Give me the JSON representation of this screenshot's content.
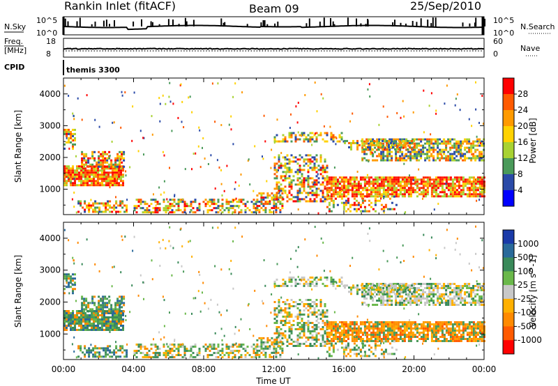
{
  "header": {
    "station": "Rankin Inlet (fitACF)",
    "beam": "Beam 09",
    "date": "25/Sep/2010"
  },
  "noise_panel": {
    "left_label": "N.Sky",
    "left_ticks": [
      "10^5",
      "10^0"
    ],
    "right_label": "N.Search",
    "right_ticks": [
      "10^5",
      "10^0"
    ]
  },
  "freq_panel": {
    "left_label_top": "Freq.",
    "left_label_unit": "[MHz]",
    "left_ticks": [
      "18",
      "8"
    ],
    "right_label": "Nave",
    "right_ticks": [
      "60",
      "0"
    ]
  },
  "cpid_panel": {
    "label": "CPID",
    "program": "themis 3300"
  },
  "chart_data": [
    {
      "type": "heatmap",
      "name": "power",
      "ylabel": "Slant Range [km]",
      "xlabel": "",
      "x_ticks": [
        "00:00",
        "04:00",
        "08:00",
        "12:00",
        "16:00",
        "20:00",
        "00:00"
      ],
      "y_ticks": [
        1000,
        2000,
        3000,
        4000
      ],
      "ylim": [
        200,
        4500
      ],
      "colorbar": {
        "label": "Power [dB]",
        "ticks": [
          "28",
          "24",
          "20",
          "16",
          "12",
          "8",
          "4"
        ],
        "colors": [
          "#ff0000",
          "#ff5a00",
          "#ff9a00",
          "#ffd200",
          "#a8d232",
          "#4a9a5a",
          "#2a4aa8",
          "#0000ff"
        ]
      }
    },
    {
      "type": "heatmap",
      "name": "velocity",
      "ylabel": "Slant Range [km]",
      "xlabel": "Time UT",
      "x_ticks": [
        "00:00",
        "04:00",
        "08:00",
        "12:00",
        "16:00",
        "20:00",
        "00:00"
      ],
      "y_ticks": [
        1000,
        2000,
        3000,
        4000
      ],
      "ylim": [
        200,
        4500
      ],
      "colorbar": {
        "label": "Velocity [m s^-1]",
        "ticks": [
          "1000",
          "500",
          "100",
          "25",
          "-25",
          "-100",
          "-500",
          "-1000"
        ],
        "colors": [
          "#1a3aa8",
          "#2a6a9a",
          "#3a8a5a",
          "#6ab84a",
          "#c8c8c8",
          "#ffb000",
          "#ff8a00",
          "#ff5a00",
          "#ff0000"
        ]
      }
    }
  ]
}
